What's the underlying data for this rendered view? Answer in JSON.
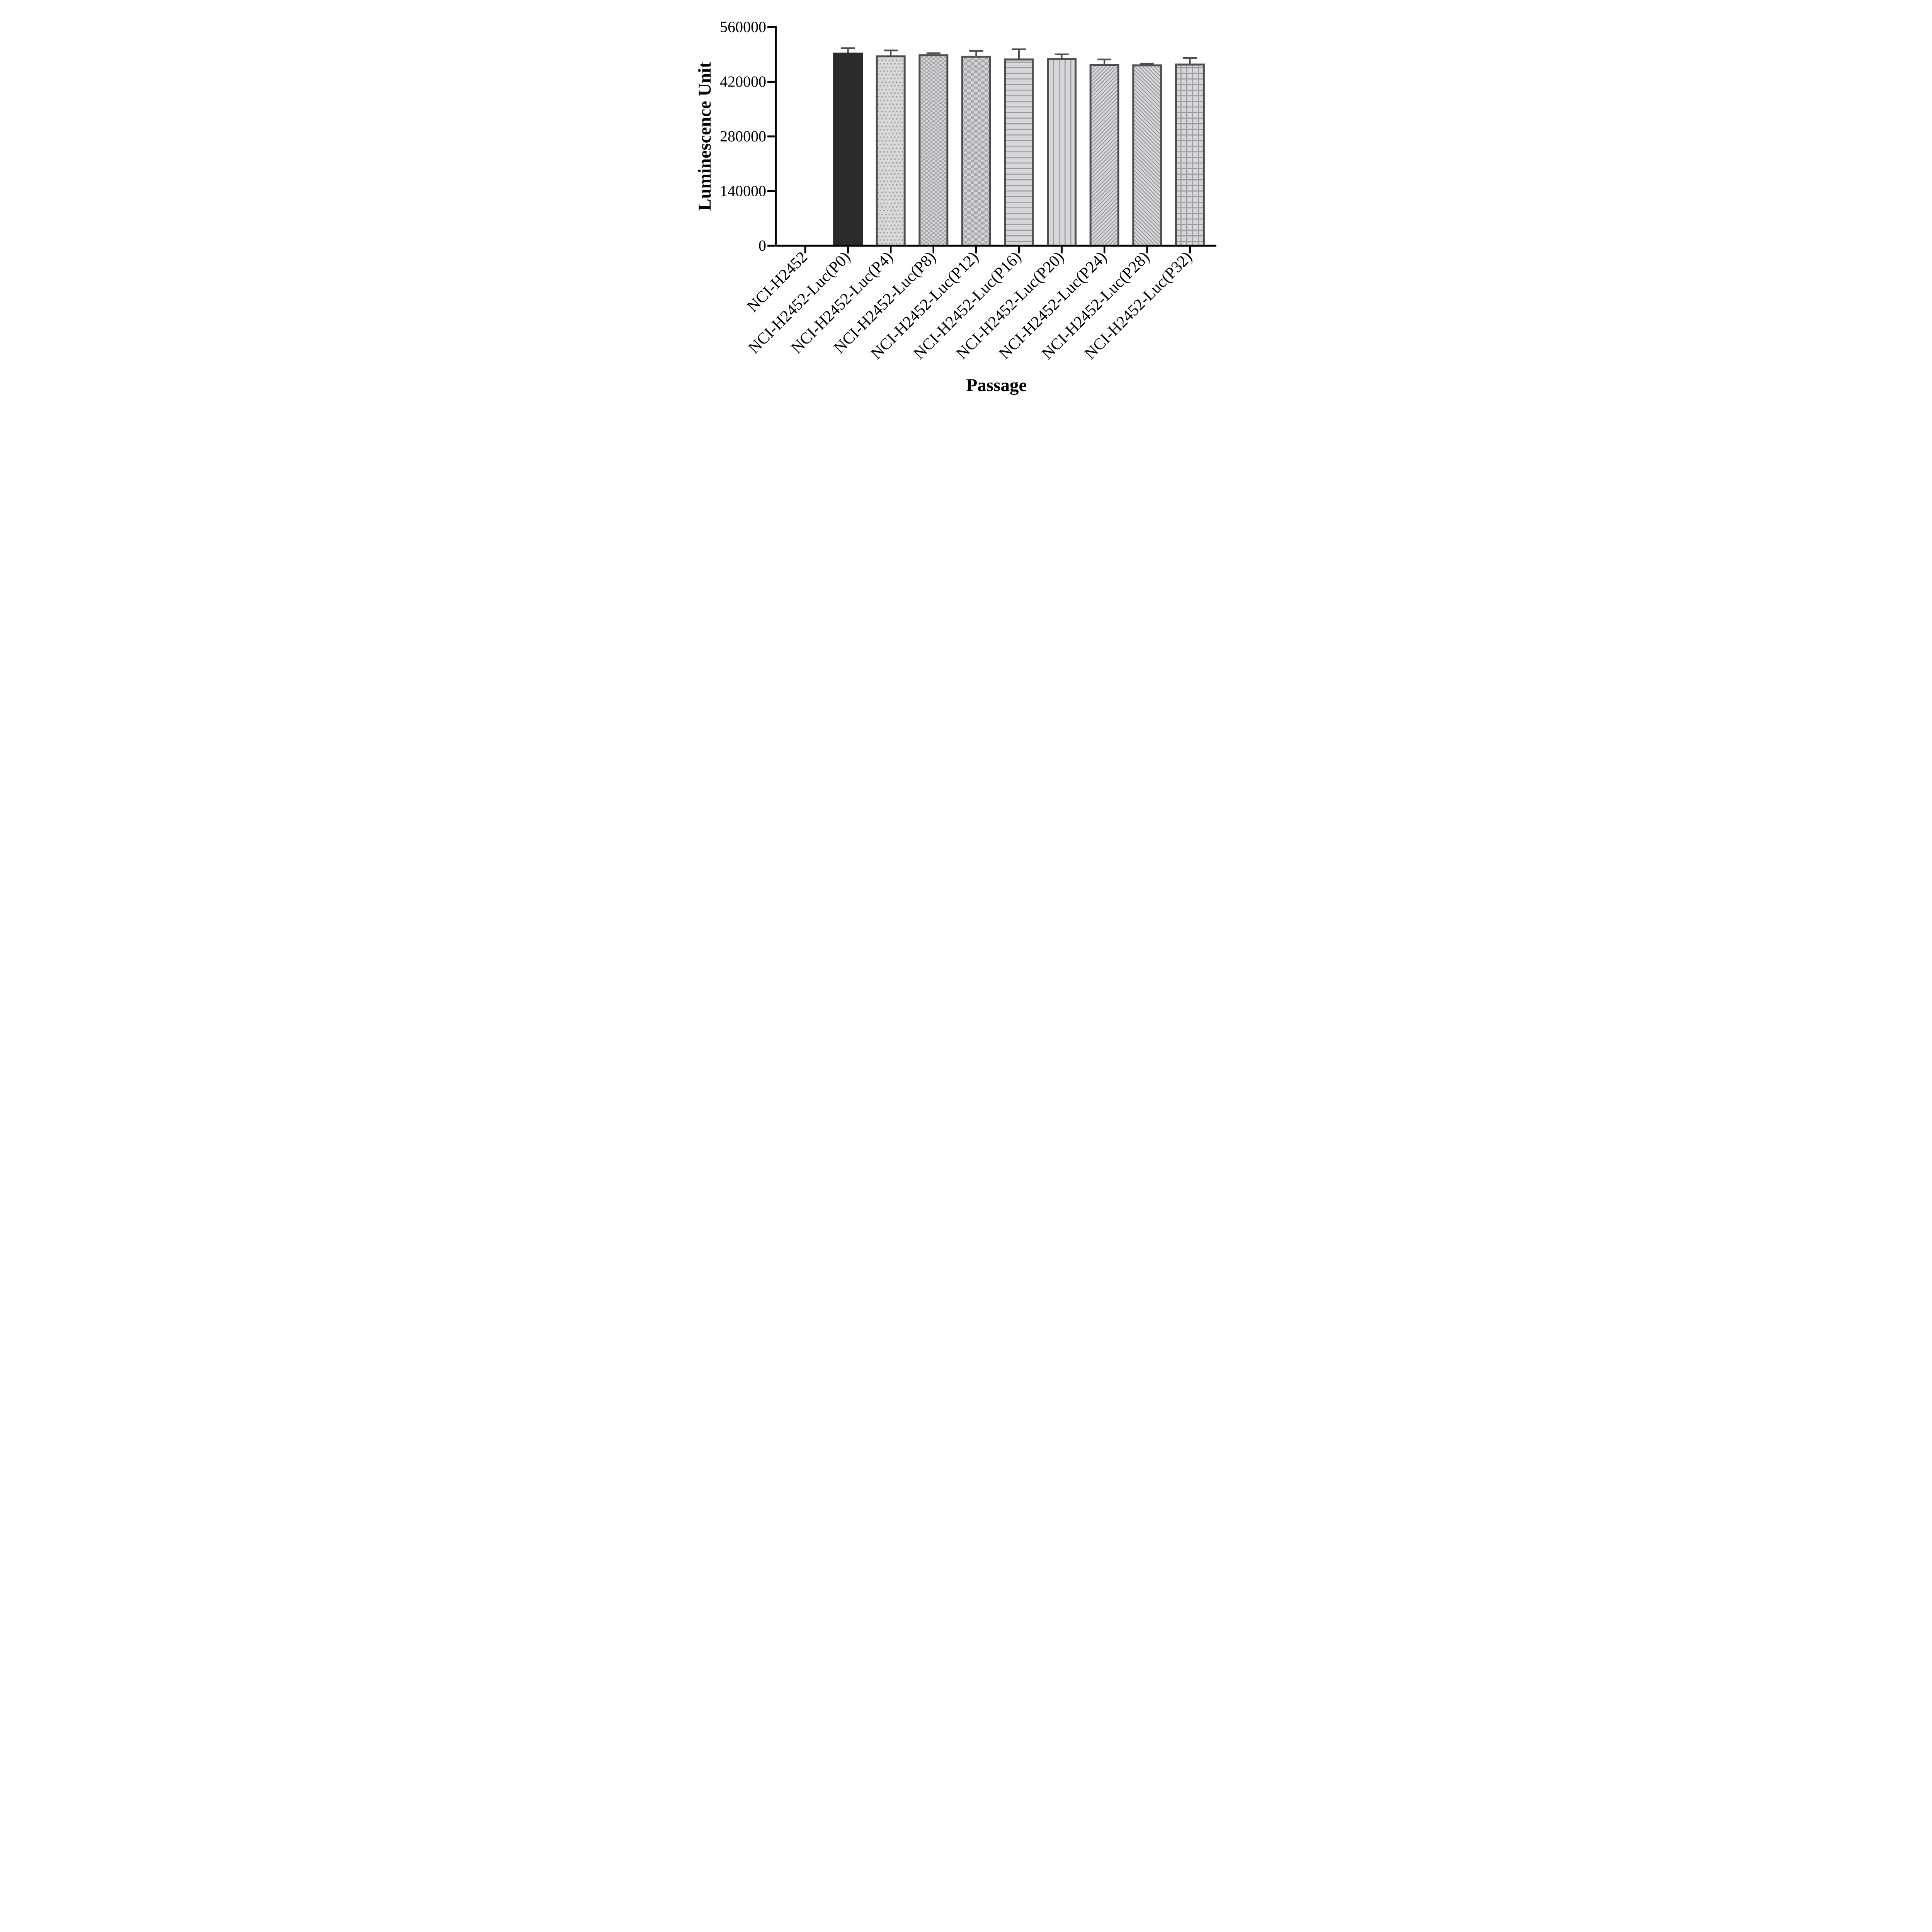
{
  "chart_data": {
    "type": "bar",
    "title": "",
    "xlabel": "Passage",
    "ylabel": "Luminescence Unit",
    "categories": [
      "NCI-H2452",
      "NCI-H2452-Luc(P0)",
      "NCI-H2452-Luc(P4)",
      "NCI-H2452-Luc(P8)",
      "NCI-H2452-Luc(P12)",
      "NCI-H2452-Luc(P16)",
      "NCI-H2452-Luc(P20)",
      "NCI-H2452-Luc(P24)",
      "NCI-H2452-Luc(P28)",
      "NCI-H2452-Luc(P32)"
    ],
    "values": [
      0,
      492000,
      485000,
      488000,
      484000,
      477000,
      478000,
      463000,
      462000,
      464000
    ],
    "errors": [
      0,
      14000,
      15000,
      5000,
      15000,
      26000,
      12000,
      14000,
      4000,
      17000
    ],
    "error_type": "SD, upper only",
    "bar_patterns": [
      "none",
      "solid",
      "dots",
      "checker-fine",
      "checker-coarse",
      "hlines",
      "vlines",
      "diag-up",
      "diag-down",
      "grid"
    ],
    "ylim": [
      0,
      560000
    ],
    "yticks": [
      0,
      140000,
      280000,
      420000,
      560000
    ],
    "ytick_labels": [
      "0",
      "140000",
      "280000",
      "420000",
      "560000"
    ],
    "grid": false,
    "legend_position": "none",
    "colors": {
      "solid_bar_fill": "#2b2b2b",
      "bar_border": "#4e4e52",
      "error_bar": "#4e4e52",
      "pattern_foreground": "#9b9ba1",
      "pattern_background": "#d7d7d9",
      "checker_foreground": "#a9a9ae",
      "checker_background": "#d3d3d6",
      "axis": "#000000",
      "text": "#000000",
      "background": "#ffffff"
    }
  }
}
